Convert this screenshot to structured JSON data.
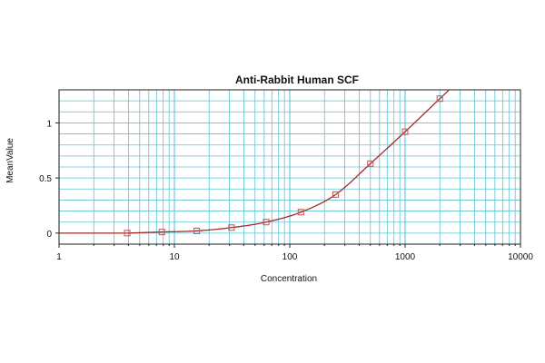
{
  "chart_data": {
    "type": "scatter",
    "title": "Anti-Rabbit Human SCF",
    "xlabel": "Concentration",
    "ylabel": "MeanValue",
    "x_scale": "log",
    "xlim": [
      1,
      10000
    ],
    "ylim": [
      -0.1,
      1.3
    ],
    "x_ticks": [
      1,
      10,
      100,
      1000,
      10000
    ],
    "x_tick_labels": [
      "1",
      "10",
      "100",
      "1000",
      "10000"
    ],
    "y_ticks": [
      0,
      0.5,
      1
    ],
    "y_tick_labels": [
      "0",
      "0.5",
      "1"
    ],
    "grid": true,
    "series": [
      {
        "x": [
          3.9,
          7.8,
          15.6,
          31.25,
          62.5,
          125,
          250,
          500,
          1000,
          2000
        ],
        "y": [
          0.0,
          0.01,
          0.02,
          0.05,
          0.1,
          0.19,
          0.35,
          0.63,
          0.92,
          1.22
        ]
      }
    ],
    "fit_curve": true,
    "colors": {
      "grid": "#5fc3d3",
      "curve": "#a52a2a",
      "marker": "#d25a5a",
      "axis": "#222222"
    }
  }
}
